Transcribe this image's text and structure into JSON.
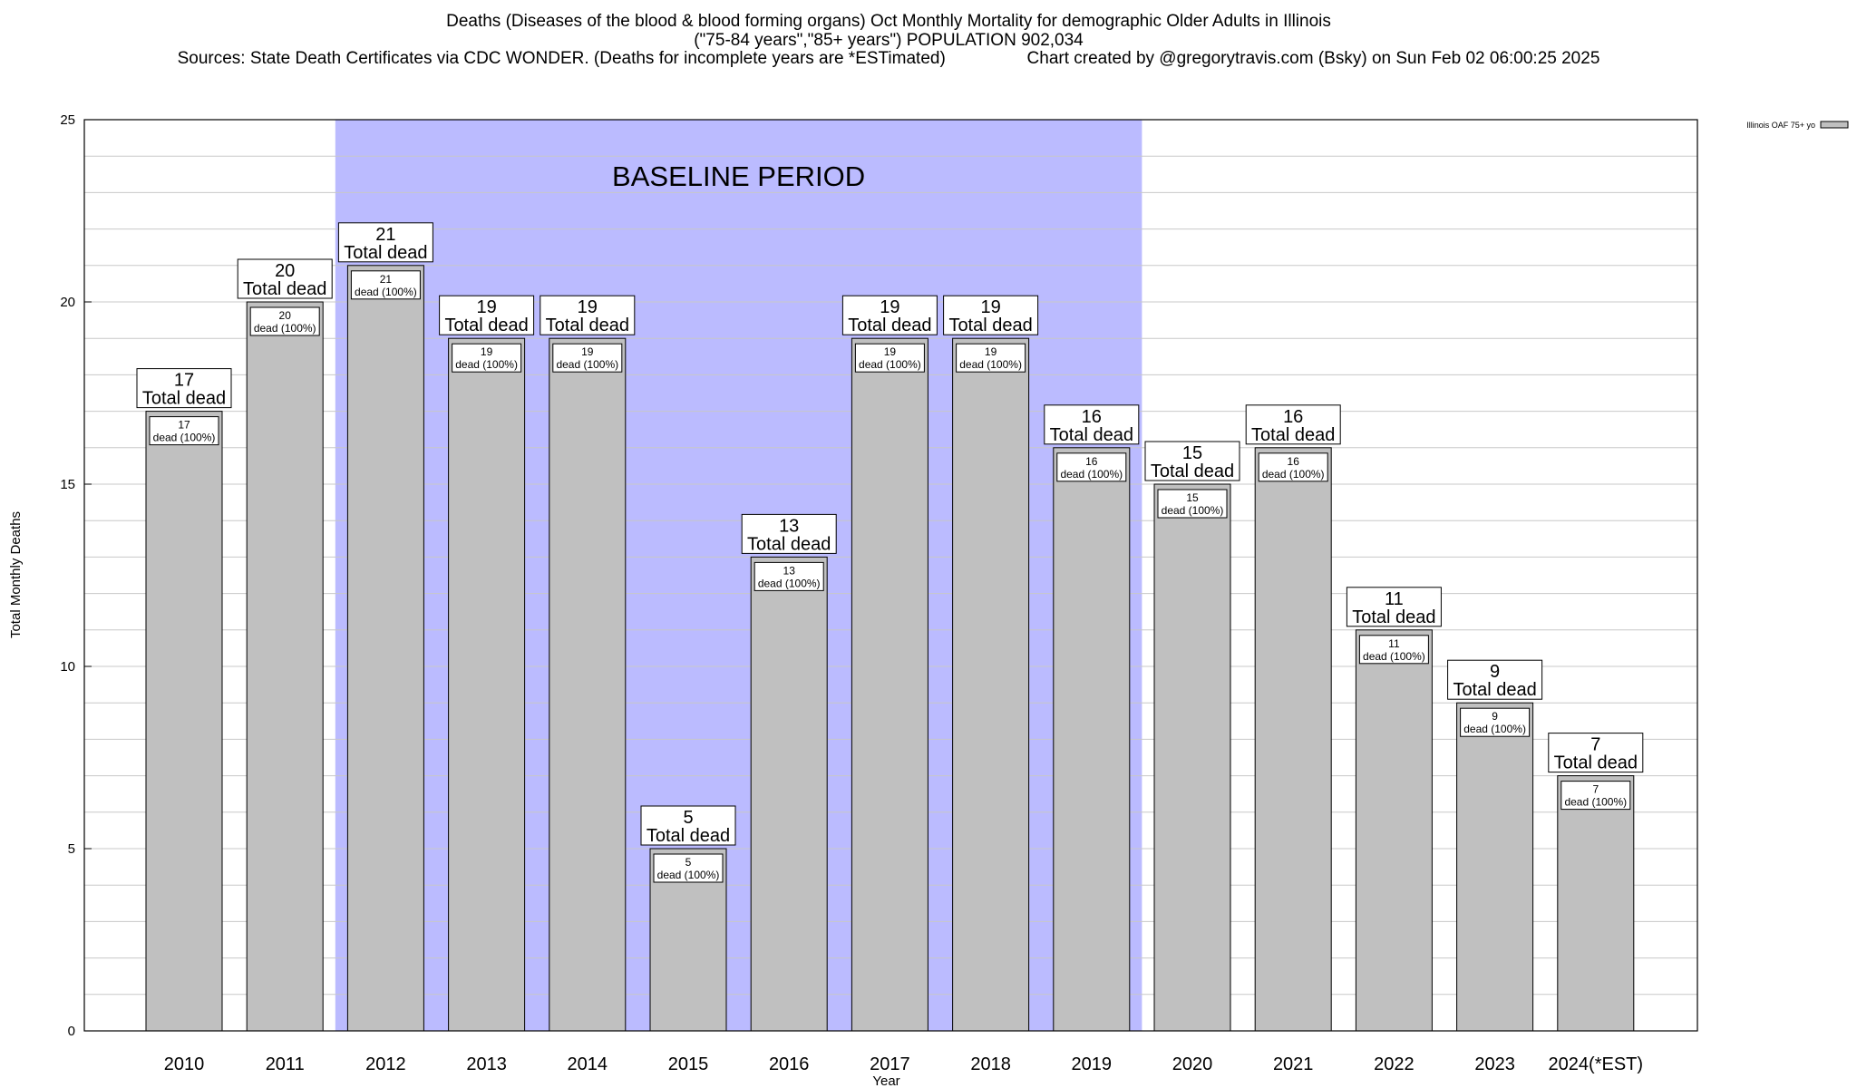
{
  "chart_data": {
    "type": "bar",
    "title": "Deaths (Diseases of the blood & blood forming organs) Oct Monthly Mortality for demographic Older Adults in Illinois",
    "subtitle": "(\"75-84 years\",\"85+ years\") POPULATION 902,034",
    "sources": "Sources: State Death Certificates via CDC WONDER. (Deaths for incomplete years are *ESTimated)",
    "credit": "Chart created by @gregorytravis.com (Bsky) on Sun Feb 02 06:00:25 2025",
    "xlabel": "Year",
    "ylabel": "Total Monthly Deaths",
    "ylim": [
      0,
      25
    ],
    "yticks": [
      "0",
      "5",
      "10",
      "15",
      "20",
      "25"
    ],
    "grid": true,
    "legend": {
      "position": "top-right",
      "entry": "Illinois OAF 75+ yo"
    },
    "baseline": {
      "label": "BASELINE PERIOD",
      "from": "2012",
      "to": "2019",
      "color": "#bbbbff"
    },
    "bar_color": "#c0c0c0",
    "categories": [
      "2010",
      "2011",
      "2012",
      "2013",
      "2014",
      "2015",
      "2016",
      "2017",
      "2018",
      "2019",
      "2020",
      "2021",
      "2022",
      "2023",
      "2024(*EST)"
    ],
    "values": [
      17,
      20,
      21,
      19,
      19,
      5,
      13,
      19,
      19,
      16,
      15,
      16,
      11,
      9,
      7
    ],
    "total_label_suffix": "Total dead",
    "inner_label_suffix": "dead (100%)"
  }
}
